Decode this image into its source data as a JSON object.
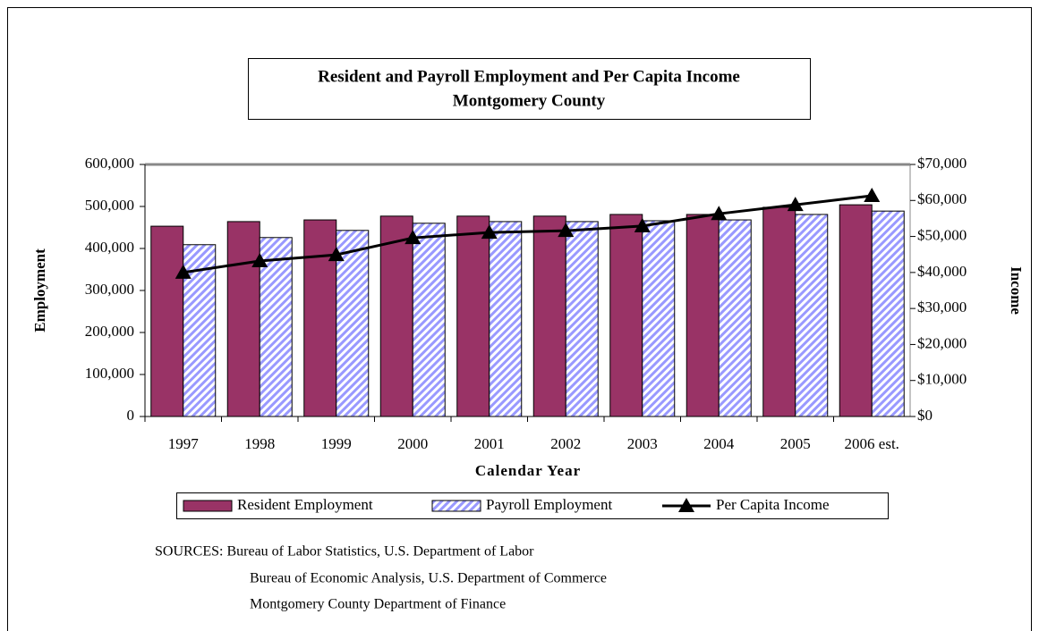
{
  "chart_data": {
    "type": "bar",
    "title": "Resident and Payroll Employment and Per Capita Income",
    "subtitle": "Montgomery County",
    "x_label": "Calendar Year",
    "y_label": "Employment",
    "y2_label": "Income",
    "categories": [
      "1997",
      "1998",
      "1999",
      "2000",
      "2001",
      "2002",
      "2003",
      "2004",
      "2005",
      "2006 est."
    ],
    "series": [
      {
        "name": "Resident Employment",
        "type": "bar",
        "color": "#993366",
        "values": [
          453000,
          464000,
          468000,
          477000,
          477000,
          477000,
          481000,
          481000,
          498000,
          504000
        ]
      },
      {
        "name": "Payroll Employment",
        "type": "bar",
        "color": "#9999ff",
        "hatch": true,
        "values": [
          409000,
          426000,
          443000,
          460000,
          464000,
          464000,
          466000,
          468000,
          481000,
          489000
        ]
      },
      {
        "name": "Per Capita Income",
        "type": "line",
        "axis": "y2",
        "color": "#000000",
        "values": [
          40000,
          43200,
          44900,
          49600,
          51100,
          51600,
          52900,
          56300,
          58800,
          61300
        ]
      }
    ],
    "ylim": [
      0,
      600000
    ],
    "yticks": [
      0,
      {
        "value": 100000,
        "label": "100,000"
      },
      {
        "value": 200000,
        "label": "200,000"
      },
      {
        "value": 300000,
        "label": "300,000"
      },
      {
        "value": 400000,
        "label": "400,000"
      },
      {
        "value": 500000,
        "label": "500,000"
      },
      {
        "value": 600000,
        "label": "600,000"
      }
    ],
    "y2lim": [
      0,
      70000
    ],
    "y2ticks": [
      {
        "value": 0,
        "label": "$0"
      },
      {
        "value": 10000,
        "label": "$10,000"
      },
      {
        "value": 20000,
        "label": "$20,000"
      },
      {
        "value": 30000,
        "label": "$30,000"
      },
      {
        "value": 40000,
        "label": "$40,000"
      },
      {
        "value": 50000,
        "label": "$50,000"
      },
      {
        "value": 60000,
        "label": "$60,000"
      },
      {
        "value": 70000,
        "label": "$70,000"
      }
    ],
    "legend": "bottom",
    "notes": [
      "SOURCES:  Bureau of Labor Statistics, U.S. Department of Labor",
      "Bureau of Economic Analysis, U.S. Department of Commerce",
      "Montgomery County Department of Finance"
    ]
  }
}
